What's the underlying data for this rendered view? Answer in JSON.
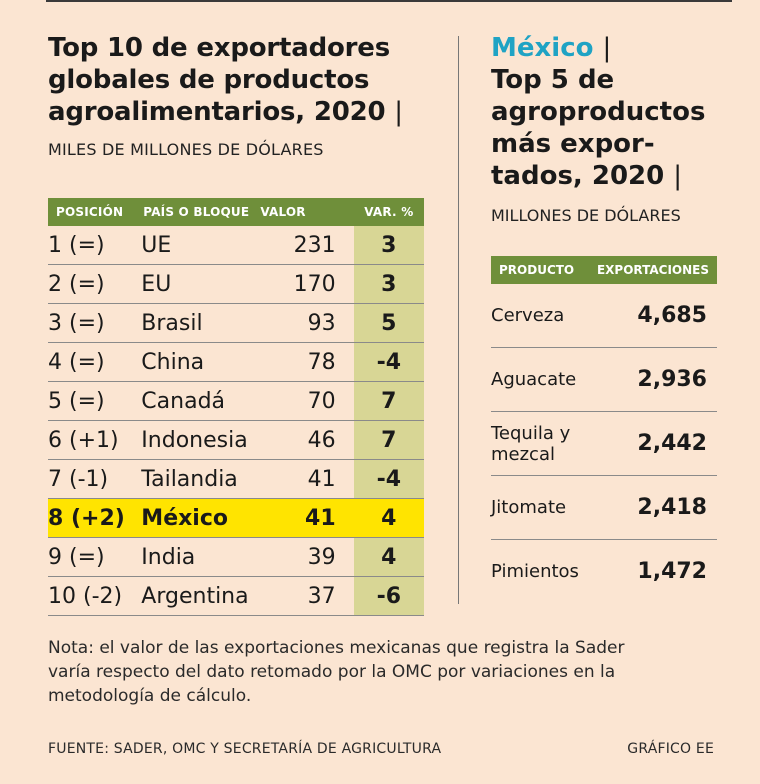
{
  "left": {
    "title_lines": [
      "Top 10 de exportadores",
      "globales de productos",
      "agroalimentarios, 2020"
    ],
    "title_separator": "|",
    "subtitle": "MILES DE MILLONES DE DÓLARES"
  },
  "right": {
    "country": "México",
    "separator": "|",
    "title_lines": [
      "Top 5 de",
      "agroproductos",
      "más expor-",
      "tados, 2020"
    ],
    "subtitle_lines": [
      "MILLONES DE DÓLARES"
    ]
  },
  "chart_data": [
    {
      "type": "table",
      "title": "Top 10 de exportadores globales de productos agroalimentarios, 2020",
      "units": "Miles de millones de dólares",
      "columns": [
        "POSICIÓN",
        "PAÍS O BLOQUE",
        "VALOR",
        "VAR. %"
      ],
      "rows": [
        {
          "posicion": "1 (=)",
          "pais": "UE",
          "valor": "231",
          "var": "3",
          "highlight": false
        },
        {
          "posicion": "2 (=)",
          "pais": "EU",
          "valor": "170",
          "var": "3",
          "highlight": false
        },
        {
          "posicion": "3 (=)",
          "pais": "Brasil",
          "valor": "93",
          "var": "5",
          "highlight": false
        },
        {
          "posicion": "4 (=)",
          "pais": "China",
          "valor": "78",
          "var": "-4",
          "highlight": false
        },
        {
          "posicion": "5 (=)",
          "pais": "Canadá",
          "valor": "70",
          "var": "7",
          "highlight": false
        },
        {
          "posicion": "6 (+1)",
          "pais": "Indonesia",
          "valor": "46",
          "var": "7",
          "highlight": false
        },
        {
          "posicion": "7 (-1)",
          "pais": "Tailandia",
          "valor": "41",
          "var": "-4",
          "highlight": false
        },
        {
          "posicion": "8 (+2)",
          "pais": "México",
          "valor": "41",
          "var": "4",
          "highlight": true
        },
        {
          "posicion": "9 (=)",
          "pais": "India",
          "valor": "39",
          "var": "4",
          "highlight": false
        },
        {
          "posicion": "10 (-2)",
          "pais": "Argentina",
          "valor": "37",
          "var": "-6",
          "highlight": false
        }
      ]
    },
    {
      "type": "table",
      "title": "México | Top 5 de agroproductos más exportados, 2020",
      "units": "Millones de dólares",
      "columns": [
        "PRODUCTO",
        "EXPORTACIONES"
      ],
      "rows": [
        {
          "producto": [
            "Cerveza"
          ],
          "exportaciones": "4,685"
        },
        {
          "producto": [
            "Aguacate"
          ],
          "exportaciones": "2,936"
        },
        {
          "producto": [
            "Tequila y",
            "mezcal"
          ],
          "exportaciones": "2,442"
        },
        {
          "producto": [
            "Jitomate"
          ],
          "exportaciones": "2,418"
        },
        {
          "producto": [
            "Pimientos"
          ],
          "exportaciones": "1,472"
        }
      ]
    }
  ],
  "note_lines": [
    "Nota: el valor de las exportaciones mexicanas que registra la Sader",
    "varía respecto del dato retomado por la OMC por variaciones en la",
    "metodología de cálculo."
  ],
  "source": "FUENTE: SADER, OMC Y SECRETARÍA DE AGRICULTURA",
  "credit": "GRÁFICO EE",
  "colors": {
    "background": "#fbe5d2",
    "header_green": "#6f8f3a",
    "var_column": "#d8d695",
    "highlight_yellow": "#ffe400",
    "mexico_blue": "#1fa3c4"
  }
}
